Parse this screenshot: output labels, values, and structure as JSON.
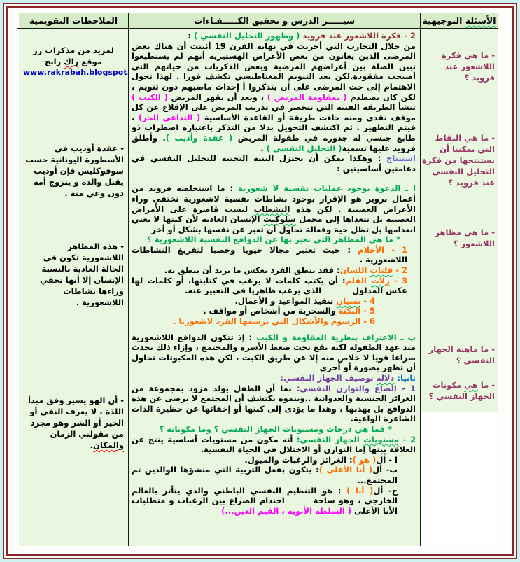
{
  "header": {
    "questions": {
      "segs": [
        {
          "t": "الأسئلة",
          "u": "green"
        },
        {
          "t": " التوجيهية"
        }
      ]
    },
    "lesson": {
      "segs": [
        {
          "t": "سيـــــر الدرس و تحقيق الكـــــفـاءات"
        }
      ]
    },
    "notes": {
      "segs": [
        {
          "t": "الملاحظات التقويمية"
        }
      ]
    }
  },
  "questions": [
    {
      "segs": [
        {
          "t": "- ما هي فكرة اللاشعور عند فرويد ؟",
          "c": "qred"
        }
      ]
    },
    {
      "segs": [
        {
          "t": "- ما هي النقاط التي يمكننا أن نستنتجها من فكرة التحليل النفسي عند فرويد ؟",
          "c": "qred"
        }
      ]
    },
    {
      "segs": [
        {
          "t": "- ما هي مظاهر اللاشعور ؟",
          "c": "qred"
        }
      ]
    },
    {
      "segs": [
        {
          "t": "- ما ماهية الجهاز النفسي ؟",
          "c": "qred"
        }
      ]
    },
    {
      "segs": [
        {
          "t": "- ما ",
          "c": "qred"
        },
        {
          "t": "هي",
          "c": "qred",
          "u": "green"
        },
        {
          "t": " مكونات الجهاز النفسي ؟",
          "c": "qred"
        }
      ]
    }
  ],
  "notes_promo": {
    "segs": [
      {
        "t": "لمزيد من مذكرات زر موقع "
      },
      {
        "t": "راك",
        "u": "red"
      },
      {
        "t": " رابح"
      }
    ]
  },
  "notes_link": {
    "url": "www.rakrabah.blogspot.com"
  },
  "notes": [
    {
      "segs": [
        {
          "t": "- عقدة أوديب في الأسطورة اليونانية حسب سوفوكليس فإن أوديب يقتل والده و يتزوج أمه دون وعي منه ."
        }
      ]
    },
    {
      "segs": [
        {
          "t": "- هذه المظاهر اللاشعورية تكون في الحالة العادية بالنسبة الإنسان إلا أنها تخفي وراءها نشاطات اللاشعورية ."
        }
      ]
    },
    {
      "segs": [
        {
          "t": "- أن الهو يسير وفق مبدأ اللذة ، لا يعرف النفي أو الخير أو الشر وهو مجرد من مقولتي الزمان "
        },
        {
          "t": "والمكان",
          "u": "red"
        },
        {
          "t": "."
        }
      ]
    }
  ],
  "lesson": {
    "blocks": [
      {
        "cls": "title",
        "name": "section-title",
        "segs": [
          {
            "t": "2 - فكرة اللاشعور عند فرويد ",
            "c": "brick"
          },
          {
            "t": "( وظهور التحليل النفسي )",
            "c": "green"
          },
          {
            "t": " :",
            "c": "black"
          }
        ]
      },
      {
        "cls": "para",
        "name": "intro-paragraph",
        "segs": [
          {
            "t": "من خلال التجارب التي أجريت في نهاية القرن 19 أثبتت أن هناك بعض المرضى الذين يعانون من بعض الأعراض الهستيرية أنهم لم يستطيعوا تبين الصلة بين أعراضهم المرضية وبعض الذكريات من حياتهم التي أصبحت مفقودة.لكن بعد التنويم المغناطيسي تكشف فورا . لهذا تحول الاهتمام إلى حث المرضى على أن يتذكروا أ إحداث ماضيهم دون تنويم ، لكن كان يصطدم "
          },
          {
            "t": "( بمقاومة المريض )",
            "c": "magenta"
          },
          {
            "t": " ، وبعد أن يقهر المريض "
          },
          {
            "t": "( الكبت )",
            "c": "magenta"
          },
          {
            "t": " تنشأ الطريقة الفنية التي تنحصر في تدريب المريض على الإقلاع عن كل موقف نقدي ومنه جاءت طريقة أو القاعدة الأساسية "
          },
          {
            "t": "( التداعي الحر)",
            "c": "magenta"
          },
          {
            "t": " ، فيتم التطهير . ثم اكتشف التحويل بدلا من التذكر باعتباره اضطراب ذو طابع جنسي له جذوره في طفولة المريض "
          },
          {
            "t": "( عقدة وأديب )",
            "c": "green"
          },
          {
            "t": ". وأطلق فرويد عليها تسمية"
          },
          {
            "t": "( التحليل النفسي )",
            "c": "green"
          },
          {
            "t": " ."
          }
        ]
      },
      {
        "cls": "para",
        "name": "conclusion-line",
        "segs": [
          {
            "t": "استنتاج ",
            "c": "violet"
          },
          {
            "t": ": وهكذا يمكن أن نختزل البنية التحتية للتحليل النفسي في دعامتين أساسيتين :"
          }
        ]
      },
      {
        "cls": "gap",
        "name": "spacer",
        "segs": []
      },
      {
        "cls": "para",
        "name": "point-a-paragraph",
        "segs": [
          {
            "t": "ا ـ الدعوة بوجود عمليات نفسية لا شعورية ",
            "c": "green"
          },
          {
            "t": ": ما استخلصه فرويد من أعمال بروير هو الإقرار بوجود نشاطات نفسية لاشعورية تختفي وراء الأعراض العصبية . لكن هذه "
          },
          {
            "t": "النشطات",
            "u": "green"
          },
          {
            "t": " ليست قاصرة على الأمراض العصبية بل تتعداها إلى مجمل "
          },
          {
            "t": "سلوكيت",
            "u": "green"
          },
          {
            "t": " الإنسان العادية لأن كبتها لا يعني انعدامها بل تظل حية وفعالة تحاول أن تعبر عن نفسها بشكل أو أخر"
          }
        ]
      },
      {
        "cls": "indent",
        "name": "question-line",
        "segs": [
          {
            "t": "* ما هي المظاهر التي نعبر بها عن الدوافع النفسية اللاشعورية ؟",
            "c": "green"
          }
        ]
      },
      {
        "cls": "list",
        "name": "list-item-1",
        "segs": [
          {
            "t": "1 - الأحلام ",
            "c": "orange"
          },
          {
            "t": ": حيث تعتبر مجالا حيويا وخصبا لتفريغ النشاطات اللاشعورية ."
          }
        ]
      },
      {
        "cls": "list",
        "name": "list-item-2",
        "segs": [
          {
            "t": "2 - ",
            "c": "orange"
          },
          {
            "t": "فلتات",
            "c": "orange",
            "u": "green"
          },
          {
            "t": " اللسان",
            "c": "orange"
          },
          {
            "t": ": فقد ينطق الفرد بعكس ما يريد أن ينطق به."
          }
        ]
      },
      {
        "cls": "list",
        "name": "list-item-3",
        "segs": [
          {
            "t": "3 - ",
            "c": "orange"
          },
          {
            "t": "زلات",
            "c": "orange",
            "u": "green"
          },
          {
            "t": " القلم",
            "c": "orange"
          },
          {
            "t": ": أن يكتب كلمات لا يرغب في كتابتها، أو كلمات لها عكس المدلول           الذي يرغب ظاهريا في التعبير عنه."
          }
        ]
      },
      {
        "cls": "list2",
        "name": "list-item-4",
        "segs": [
          {
            "t": "4 - ",
            "c": "orange"
          },
          {
            "t": "نسيان",
            "c": "orange",
            "u": "green"
          },
          {
            "t": " تنفيذ المواعيد و الأعمال."
          }
        ]
      },
      {
        "cls": "list2",
        "name": "list-item-5",
        "segs": [
          {
            "t": "5 - النكتة ",
            "c": "orange"
          },
          {
            "t": "والسخرية من أشخاص أو مواقف ."
          }
        ]
      },
      {
        "cls": "list2",
        "name": "list-item-6",
        "segs": [
          {
            "t": "6 - الرسوم والأشكال التي يرسمها الفرد لاشعوريا .",
            "c": "orange"
          }
        ]
      },
      {
        "cls": "gap2",
        "name": "spacer",
        "segs": []
      },
      {
        "cls": "para",
        "name": "point-b-paragraph",
        "segs": [
          {
            "t": "ب ـ الاعتراف بنظرية المقاومة و الكبت ",
            "c": "green"
          },
          {
            "t": ": إذ تتكون الدوافع اللاشعورية منذ عهد الطفولة لكنه يقع تحت ضغط الأسرة والمجتمع ، وإزاء ذلك يحدث صراعا قويا لا خلاص منه إلا عن طريق الكبت ، لكن هذه المكبوتات تحاول أن تظهر بصورة أو أخرى"
          }
        ]
      },
      {
        "cls": "para",
        "name": "second-section-title",
        "segs": [
          {
            "t": "ثانيا:",
            "c": "blue"
          },
          {
            "t": " ",
            "c": "black"
          },
          {
            "t": "دلالة",
            "c": "purple",
            "u": "green"
          },
          {
            "t": " توصيف الجهاز النفسي:",
            "c": "purple"
          }
        ]
      },
      {
        "cls": "para",
        "name": "psych-balance-paragraph",
        "segs": [
          {
            "t": "1 - الصاع والتوازن النفسي:",
            "c": "purple"
          },
          {
            "t": " بما أن الطفل يولد مزود بمجموعة من الغرائز الجنسية والعدوانية ..وبنموه يكتشف أن المجتمع لا يرضى عن هذه الدوافع بل يهذبها ، وهذا ما يؤدى إلى كبتها أو إخفائها عن حظيرة الذات الشاعرة الواعية."
          }
        ]
      },
      {
        "cls": "indent2",
        "name": "question-line",
        "segs": [
          {
            "t": "* فما هي درجات ومستويات الجهاز النفسي ؟ وما مكوناته ؟",
            "c": "green"
          }
        ]
      },
      {
        "cls": "para",
        "name": "psych-levels-paragraph",
        "segs": [
          {
            "t": "2 - ",
            "c": "green"
          },
          {
            "t": "مستويات",
            "c": "green",
            "u": "green"
          },
          {
            "t": " الجهاز النفسي:",
            "c": "green"
          },
          {
            "t": " أنه مكون من مستويات أساسية ينتج عن العلاقة بينها إما التوازن أو الاختلال في الحياة النفسية."
          }
        ]
      },
      {
        "cls": "sub",
        "name": "id-line",
        "segs": [
          {
            "t": "ا - أل"
          },
          {
            "t": "( هو )",
            "c": "orange"
          },
          {
            "t": ": الغرائز والرغبات والميول."
          }
        ]
      },
      {
        "cls": "sub",
        "name": "superego-line",
        "segs": [
          {
            "t": "ب- أل"
          },
          {
            "t": "( أنا الأعلى )",
            "c": "orange"
          },
          {
            "t": ": يتكون بفعل التربية التي منشؤها الوالدين ثم المجتمع..."
          }
        ]
      },
      {
        "cls": "sub",
        "name": "ego-paragraph",
        "segs": [
          {
            "t": "ج- أل"
          },
          {
            "t": "( أنا )",
            "c": "orange"
          },
          {
            "t": " : هو التنظيم النفسي الباطني والذي يتأثر بالعالم الخارجي ، وهو ساحة        احتدام الصراع بين الرغبات و متطلبات الأنا الأعلى "
          },
          {
            "t": "( السلطة الأبوية ، القيم الدين...)",
            "c": "magenta"
          }
        ]
      }
    ]
  }
}
